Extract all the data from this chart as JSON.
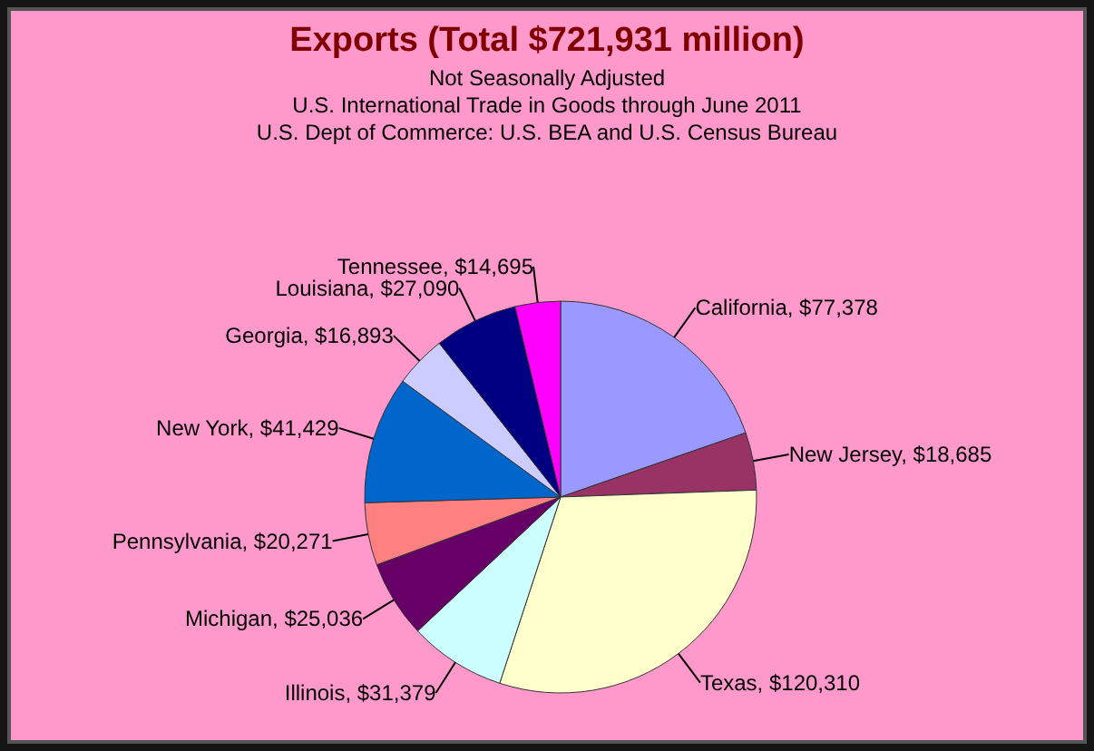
{
  "chart_data": {
    "type": "pie",
    "title": "Exports (Total $721,931 million)",
    "subtitle": "Not Seasonally Adjusted",
    "annotations": [
      "U.S. International Trade in Goods through June 2011",
      "U.S. Dept of Commerce: U.S. BEA and U.S. Census Bureau"
    ],
    "categories": [
      "California",
      "New Jersey",
      "Texas",
      "Illinois",
      "Michigan",
      "Pennsylvania",
      "New York",
      "Georgia",
      "Louisiana",
      "Tennessee"
    ],
    "values": [
      77378,
      18685,
      120310,
      31379,
      25036,
      20271,
      41429,
      16893,
      27090,
      14695
    ],
    "value_labels": [
      "$77,378",
      "$18,685",
      "$120,310",
      "$31,379",
      "$25,036",
      "$20,271",
      "$41,429",
      "$16,893",
      "$27,090",
      "$14,695"
    ],
    "colors": [
      "#9999ff",
      "#993366",
      "#ffffcc",
      "#ccffff",
      "#660066",
      "#ff8080",
      "#0066cc",
      "#ccccff",
      "#000080",
      "#ff00ff"
    ],
    "legend": false
  }
}
